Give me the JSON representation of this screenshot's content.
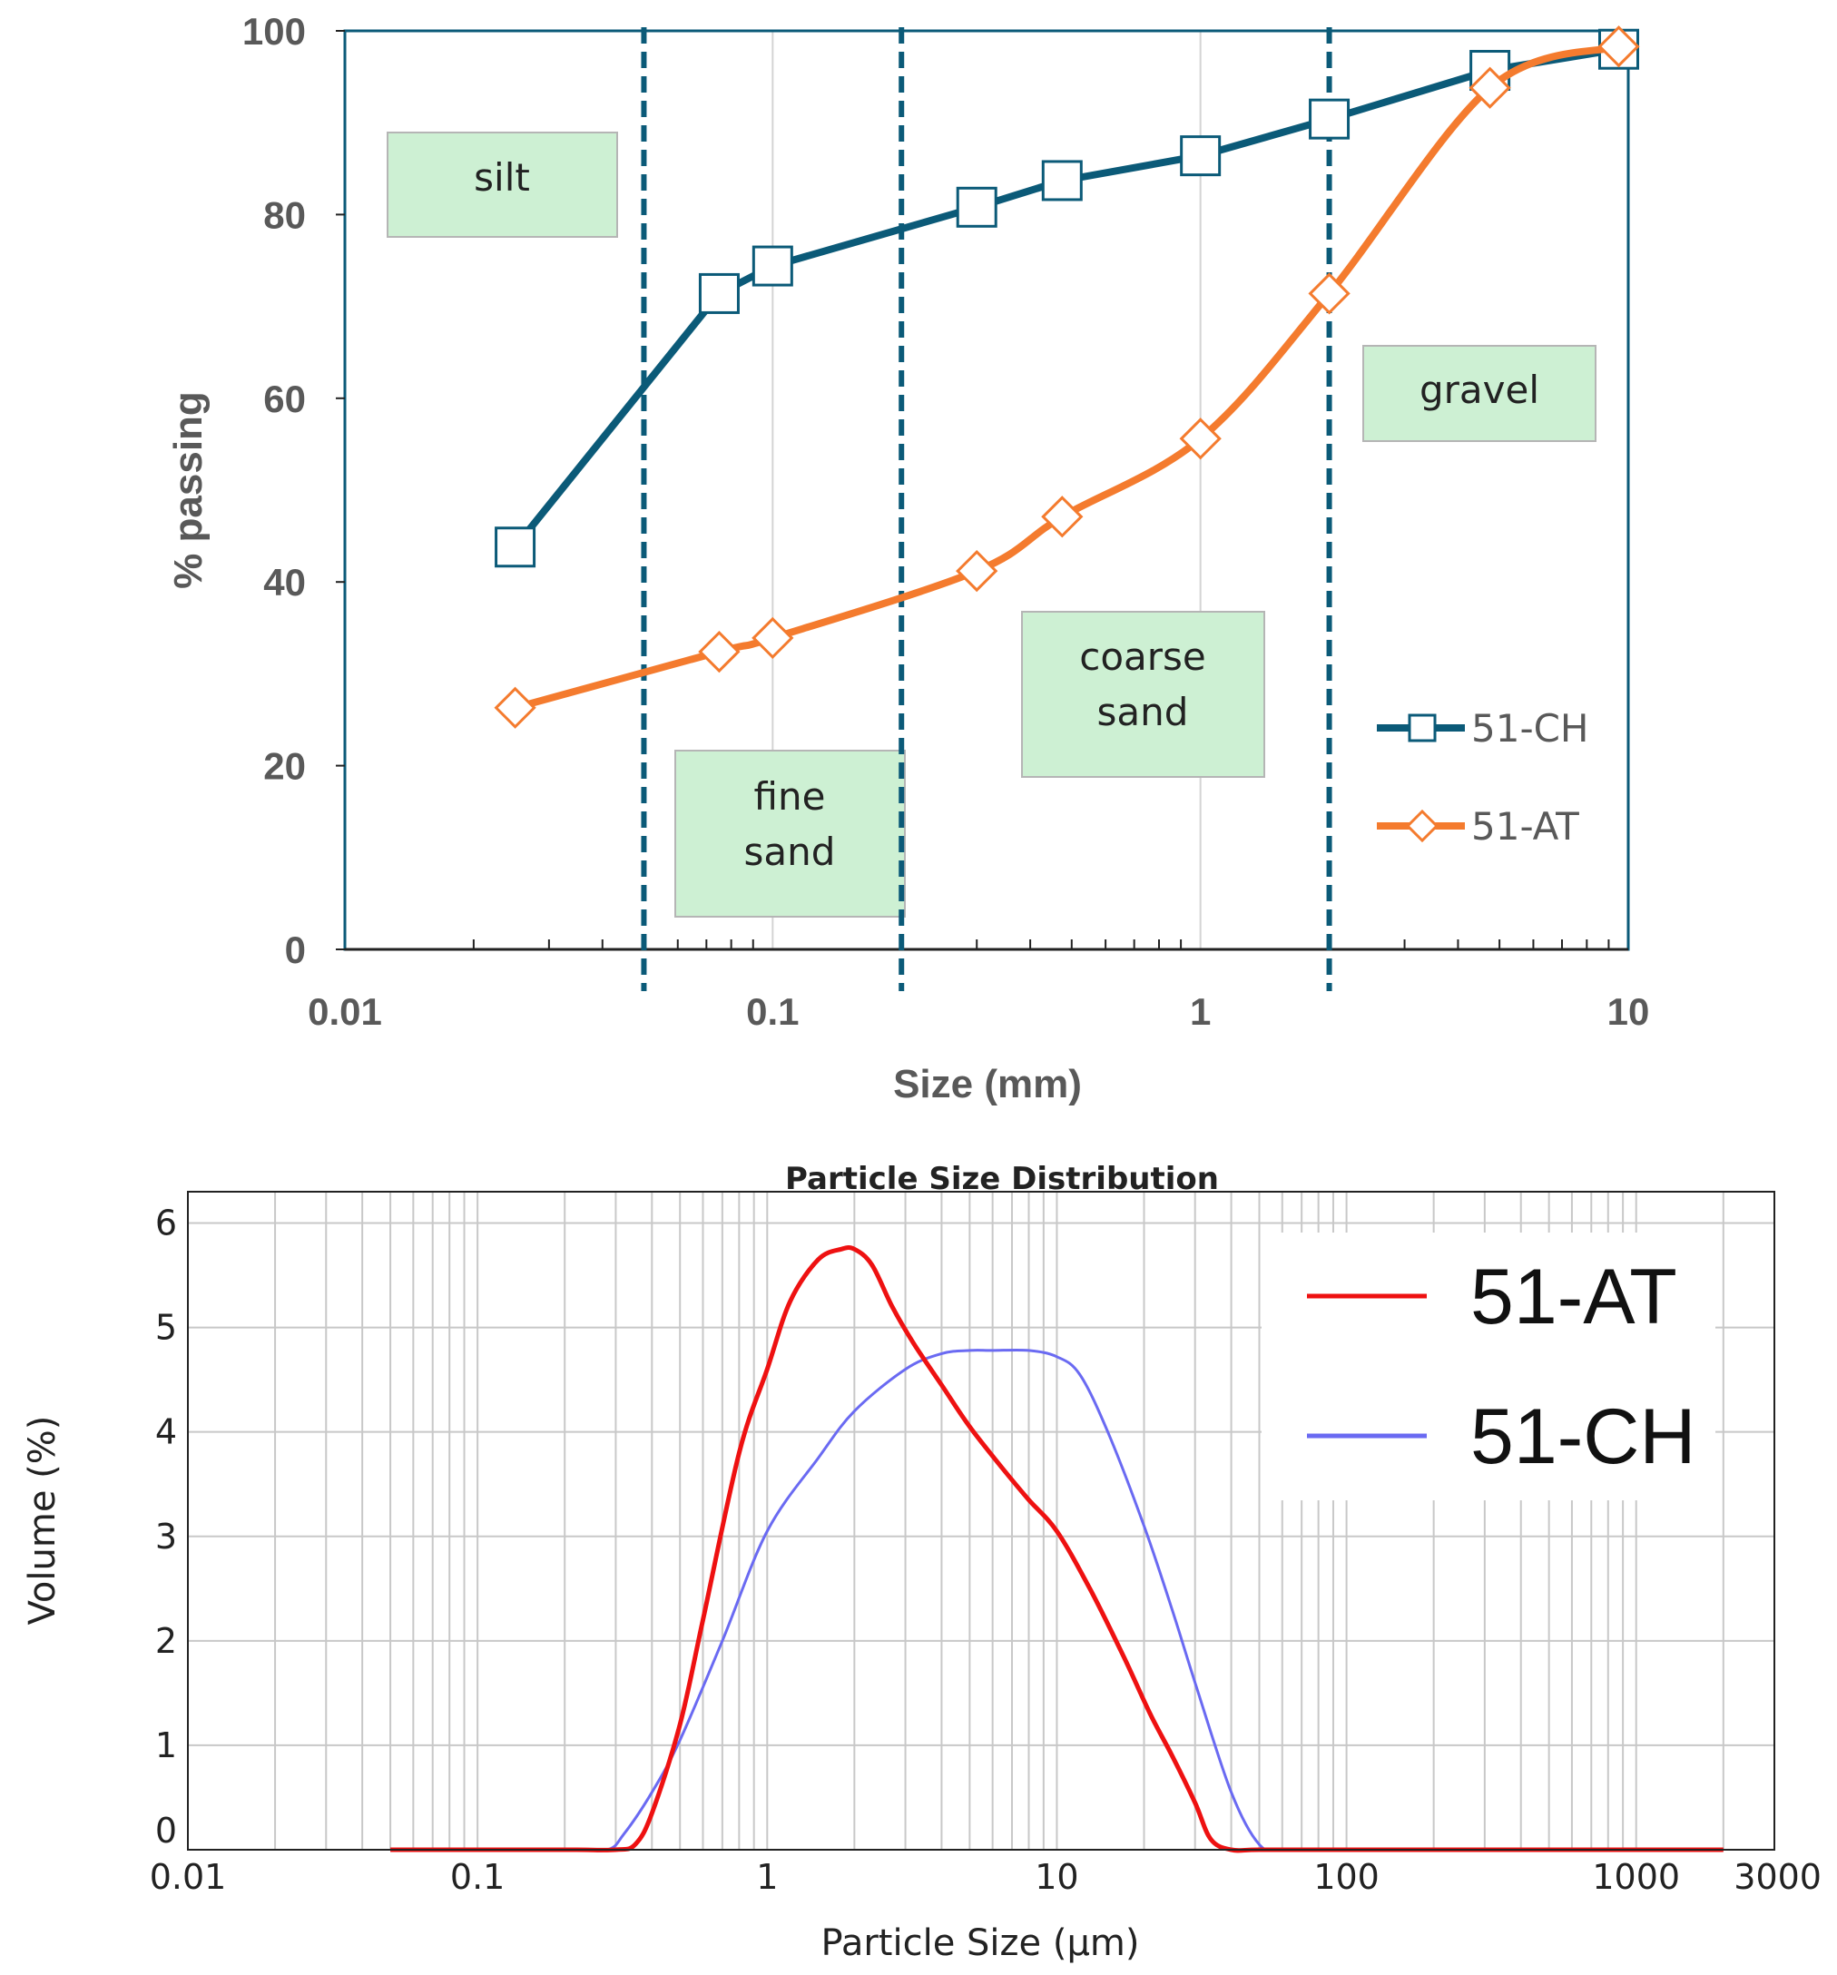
{
  "chart_data": [
    {
      "type": "line",
      "title": "",
      "xlabel": "Size (mm)",
      "ylabel": "% passing",
      "xscale": "log",
      "xlim": [
        0.01,
        10
      ],
      "ylim": [
        0,
        100
      ],
      "x_tick_labels": [
        "0.01",
        "0.1",
        "1",
        "10"
      ],
      "y_tick_labels": [
        "0",
        "20",
        "40",
        "60",
        "80",
        "100"
      ],
      "boundary_lines": [
        0.05,
        0.2,
        2
      ],
      "soil_classes": [
        {
          "label": "silt"
        },
        {
          "label": "fine sand"
        },
        {
          "label": "coarse sand"
        },
        {
          "label": "gravel"
        }
      ],
      "series": [
        {
          "name": "51-CH",
          "color": "#0b5a78",
          "marker": "square",
          "x": [
            0.025,
            0.075,
            0.1,
            0.3,
            0.475,
            1,
            2,
            4.75,
            9.5
          ],
          "y": [
            43.8,
            71.4,
            74.4,
            80.8,
            83.7,
            86.4,
            90.4,
            95.7,
            98
          ]
        },
        {
          "name": "51-AT",
          "color": "#f47b2e",
          "marker": "diamond",
          "x": [
            0.025,
            0.075,
            0.1,
            0.3,
            0.475,
            1,
            2,
            4.75,
            9.5
          ],
          "y": [
            26.3,
            32.4,
            33.9,
            41.2,
            47.1,
            55.6,
            71.4,
            93.8,
            98.3
          ]
        }
      ],
      "legend": "lower-right"
    },
    {
      "type": "line",
      "title": "Particle Size Distribution",
      "xlabel": "Particle Size (µm)",
      "ylabel": "Volume (%)",
      "xscale": "log",
      "xlim": [
        0.01,
        3000
      ],
      "ylim": [
        0,
        6.3
      ],
      "x_tick_labels": [
        "0.01",
        "0.1",
        "1",
        "10",
        "100",
        "1000",
        "3000"
      ],
      "y_tick_labels": [
        "0",
        "1",
        "2",
        "3",
        "4",
        "5",
        "6"
      ],
      "series": [
        {
          "name": "51-AT",
          "color": "#ee1111",
          "x": [
            0.05,
            0.2,
            0.3,
            0.35,
            0.4,
            0.5,
            0.6,
            0.8,
            1,
            1.2,
            1.5,
            1.8,
            2,
            2.3,
            2.7,
            3.2,
            4,
            5,
            6.5,
            8,
            10,
            13,
            17,
            21,
            25,
            30,
            34,
            40,
            50,
            100,
            1000,
            2000
          ],
          "values": [
            0,
            0,
            0,
            0.05,
            0.35,
            1.2,
            2.2,
            3.8,
            4.6,
            5.25,
            5.65,
            5.75,
            5.75,
            5.6,
            5.2,
            4.85,
            4.45,
            4.05,
            3.65,
            3.35,
            3.05,
            2.5,
            1.85,
            1.3,
            0.9,
            0.45,
            0.1,
            0,
            0,
            0,
            0,
            0
          ]
        },
        {
          "name": "51-CH",
          "color": "#6a6af2",
          "x": [
            0.05,
            0.2,
            0.28,
            0.32,
            0.4,
            0.5,
            0.7,
            1,
            1.5,
            2,
            3,
            4,
            5,
            6,
            8,
            10,
            12,
            15,
            20,
            25,
            30,
            40,
            50,
            60,
            100,
            1000,
            2000
          ],
          "values": [
            0,
            0,
            0,
            0.15,
            0.55,
            1.05,
            2.0,
            3.05,
            3.75,
            4.2,
            4.6,
            4.75,
            4.78,
            4.78,
            4.78,
            4.72,
            4.55,
            4.0,
            3.1,
            2.3,
            1.6,
            0.55,
            0.05,
            0,
            0,
            0,
            0
          ]
        }
      ],
      "legend": "top-right"
    }
  ]
}
